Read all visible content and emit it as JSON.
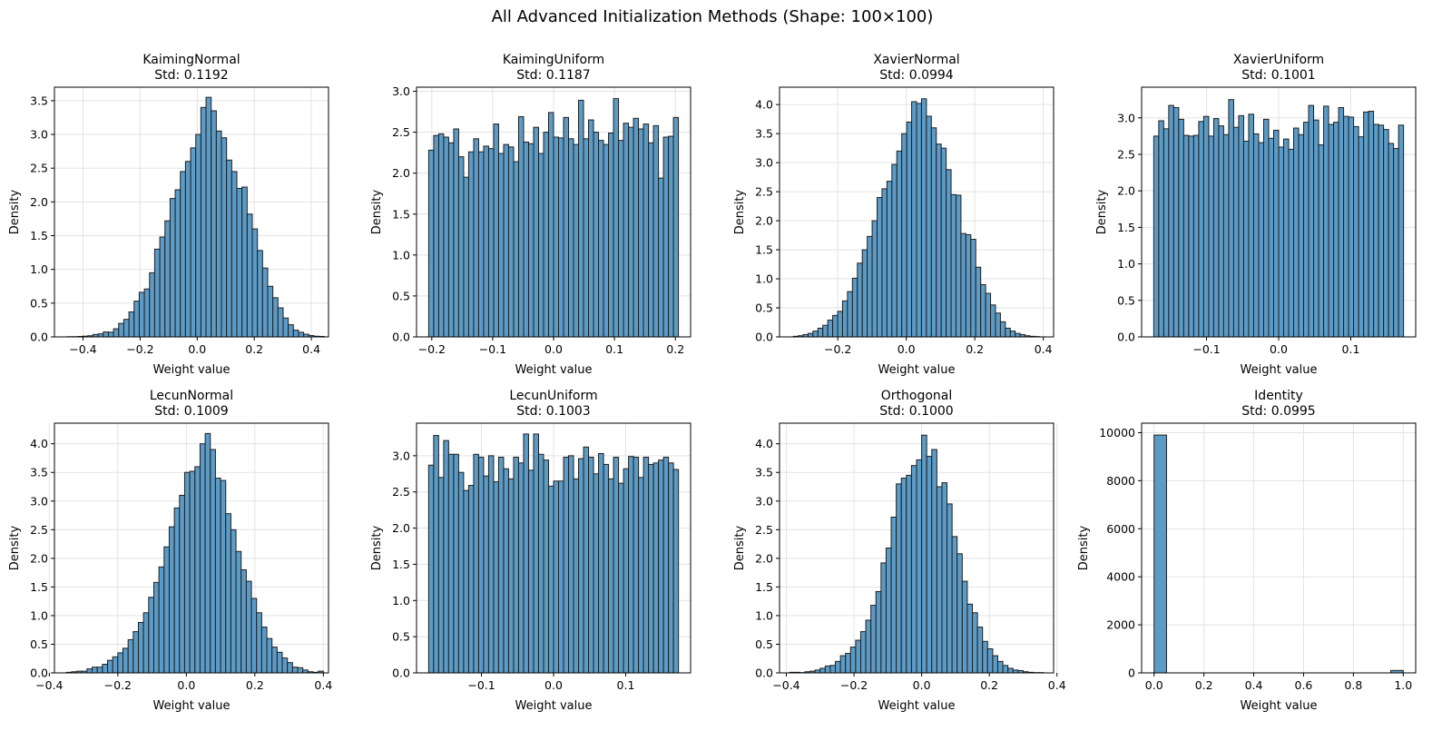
{
  "figure": {
    "title": "All Advanced Initialization Methods (Shape: 100×100)"
  },
  "colors": {
    "bar_fill": "#5b9bc6",
    "bar_edge": "#1f1f1f",
    "grid": "#e3e3e3",
    "axis": "#000000"
  },
  "chart_data": [
    {
      "type": "bar",
      "title": "KaimingNormal",
      "subtitle": "Std: 0.1192",
      "xlabel": "Weight value",
      "ylabel": "Density",
      "xlim": [
        -0.5,
        0.46
      ],
      "ylim": [
        0,
        3.7
      ],
      "xticks": [
        -0.4,
        -0.2,
        0.0,
        0.2,
        0.4
      ],
      "xtick_labels": [
        "−0.4",
        "−0.2",
        "0.0",
        "0.2",
        "0.4"
      ],
      "yticks": [
        0,
        0.5,
        1.0,
        1.5,
        2.0,
        2.5,
        3.0,
        3.5
      ],
      "ytick_labels": [
        "0.0",
        "0.5",
        "1.0",
        "1.5",
        "2.0",
        "2.5",
        "3.0",
        "3.5"
      ],
      "grid": true,
      "bins": {
        "start": -0.455,
        "end": 0.445,
        "count": 50
      },
      "values": [
        0.003,
        0.003,
        0.007,
        0.011,
        0.017,
        0.036,
        0.045,
        0.073,
        0.07,
        0.12,
        0.2,
        0.26,
        0.37,
        0.53,
        0.66,
        0.71,
        0.95,
        1.3,
        1.48,
        1.72,
        2.05,
        2.18,
        2.45,
        2.6,
        2.8,
        3.0,
        3.4,
        3.55,
        3.35,
        3.05,
        2.95,
        2.62,
        2.45,
        2.2,
        2.22,
        1.82,
        1.6,
        1.28,
        1.02,
        0.75,
        0.58,
        0.43,
        0.28,
        0.18,
        0.1,
        0.068,
        0.04,
        0.02,
        0.01,
        0.007
      ]
    },
    {
      "type": "bar",
      "title": "KaimingUniform",
      "subtitle": "Std: 0.1187",
      "xlabel": "Weight value",
      "ylabel": "Density",
      "xlim": [
        -0.225,
        0.225
      ],
      "ylim": [
        0,
        3.05
      ],
      "xticks": [
        -0.2,
        -0.1,
        0.0,
        0.1,
        0.2
      ],
      "xtick_labels": [
        "−0.2",
        "−0.1",
        "0.0",
        "0.1",
        "0.2"
      ],
      "yticks": [
        0,
        0.5,
        1.0,
        1.5,
        2.0,
        2.5,
        3.0
      ],
      "ytick_labels": [
        "0.0",
        "0.5",
        "1.0",
        "1.5",
        "2.0",
        "2.5",
        "3.0"
      ],
      "grid": true,
      "bins": {
        "start": -0.205,
        "end": 0.205,
        "count": 50
      },
      "values": [
        2.28,
        2.46,
        2.48,
        2.44,
        2.37,
        2.54,
        2.2,
        1.95,
        2.26,
        2.42,
        2.26,
        2.33,
        2.3,
        2.6,
        2.24,
        2.35,
        2.32,
        2.14,
        2.69,
        2.38,
        2.36,
        2.56,
        2.24,
        2.5,
        2.74,
        2.44,
        2.43,
        2.68,
        2.42,
        2.35,
        2.89,
        2.42,
        2.65,
        2.5,
        2.4,
        2.35,
        2.49,
        2.91,
        2.4,
        2.61,
        2.56,
        2.67,
        2.54,
        2.6,
        2.37,
        2.58,
        1.94,
        2.44,
        2.45,
        2.68
      ]
    },
    {
      "type": "bar",
      "title": "XavierNormal",
      "subtitle": "Std: 0.0994",
      "xlabel": "Weight value",
      "ylabel": "Density",
      "xlim": [
        -0.37,
        0.43
      ],
      "ylim": [
        0,
        4.3
      ],
      "xticks": [
        -0.2,
        0.0,
        0.2,
        0.4
      ],
      "xtick_labels": [
        "−0.2",
        "0.0",
        "0.2",
        "0.4"
      ],
      "yticks": [
        0,
        0.5,
        1.0,
        1.5,
        2.0,
        2.5,
        3.0,
        3.5,
        4.0
      ],
      "ytick_labels": [
        "0.0",
        "0.5",
        "1.0",
        "1.5",
        "2.0",
        "2.5",
        "3.0",
        "3.5",
        "4.0"
      ],
      "grid": true,
      "bins": {
        "start": -0.33,
        "end": 0.39,
        "count": 50
      },
      "values": [
        0.01,
        0.02,
        0.04,
        0.06,
        0.1,
        0.15,
        0.2,
        0.29,
        0.37,
        0.44,
        0.62,
        0.78,
        1.01,
        1.27,
        1.5,
        1.73,
        2.0,
        2.4,
        2.55,
        2.68,
        2.97,
        3.2,
        3.5,
        3.7,
        4.05,
        4.02,
        4.1,
        3.8,
        3.6,
        3.32,
        3.25,
        2.88,
        2.45,
        2.44,
        1.78,
        1.76,
        1.68,
        1.2,
        0.9,
        0.75,
        0.55,
        0.41,
        0.26,
        0.15,
        0.1,
        0.06,
        0.04,
        0.02,
        0.01,
        0.005
      ]
    },
    {
      "type": "bar",
      "title": "XavierUniform",
      "subtitle": "Std: 0.1001",
      "xlabel": "Weight value",
      "ylabel": "Density",
      "xlim": [
        -0.19,
        0.19
      ],
      "ylim": [
        0,
        3.42
      ],
      "xticks": [
        -0.1,
        0.0,
        0.1
      ],
      "xtick_labels": [
        "−0.1",
        "0.0",
        "0.1"
      ],
      "yticks": [
        0,
        0.5,
        1.0,
        1.5,
        2.0,
        2.5,
        3.0
      ],
      "ytick_labels": [
        "0.0",
        "0.5",
        "1.0",
        "1.5",
        "2.0",
        "2.5",
        "3.0"
      ],
      "grid": true,
      "bins": {
        "start": -0.1732,
        "end": 0.1732,
        "count": 50
      },
      "values": [
        2.75,
        2.96,
        2.85,
        3.17,
        3.14,
        2.98,
        2.76,
        2.75,
        2.76,
        2.95,
        3.02,
        2.75,
        2.99,
        2.89,
        2.77,
        3.25,
        2.87,
        3.03,
        2.68,
        3.05,
        2.78,
        2.66,
        2.98,
        2.72,
        2.83,
        2.6,
        2.71,
        2.57,
        2.86,
        2.77,
        2.94,
        3.17,
        2.97,
        2.63,
        3.16,
        2.91,
        2.94,
        3.14,
        3.02,
        3.01,
        2.88,
        2.74,
        3.08,
        3.09,
        2.91,
        2.9,
        2.84,
        2.65,
        2.58,
        2.9
      ]
    },
    {
      "type": "bar",
      "title": "LecunNormal",
      "subtitle": "Std: 0.1009",
      "xlabel": "Weight value",
      "ylabel": "Density",
      "xlim": [
        -0.385,
        0.415
      ],
      "ylim": [
        0,
        4.36
      ],
      "xticks": [
        -0.4,
        -0.2,
        0.0,
        0.2,
        0.4
      ],
      "xtick_labels": [
        "−0.4",
        "−0.2",
        "0.0",
        "0.2",
        "0.4"
      ],
      "yticks": [
        0,
        0.5,
        1.0,
        1.5,
        2.0,
        2.5,
        3.0,
        3.5,
        4.0
      ],
      "ytick_labels": [
        "0.0",
        "0.5",
        "1.0",
        "1.5",
        "2.0",
        "2.5",
        "3.0",
        "3.5",
        "4.0"
      ],
      "grid": true,
      "bins": {
        "start": -0.35,
        "end": 0.4,
        "count": 50
      },
      "values": [
        0.01,
        0.02,
        0.03,
        0.03,
        0.07,
        0.1,
        0.1,
        0.15,
        0.22,
        0.28,
        0.35,
        0.43,
        0.58,
        0.72,
        0.88,
        1.05,
        1.32,
        1.58,
        1.85,
        2.2,
        2.55,
        2.88,
        3.1,
        3.5,
        3.52,
        3.6,
        4.0,
        4.18,
        3.9,
        3.4,
        3.36,
        2.78,
        2.5,
        2.12,
        1.8,
        1.6,
        1.3,
        1.05,
        0.8,
        0.6,
        0.45,
        0.36,
        0.26,
        0.18,
        0.1,
        0.09,
        0.05,
        0.02,
        0.01,
        0.03
      ]
    },
    {
      "type": "bar",
      "title": "LecunUniform",
      "subtitle": "Std: 0.1003",
      "xlabel": "Weight value",
      "ylabel": "Density",
      "xlim": [
        -0.19,
        0.19
      ],
      "ylim": [
        0,
        3.45
      ],
      "xticks": [
        -0.1,
        0.0,
        0.1
      ],
      "xtick_labels": [
        "−0.1",
        "0.0",
        "0.1"
      ],
      "yticks": [
        0,
        0.5,
        1.0,
        1.5,
        2.0,
        2.5,
        3.0
      ],
      "ytick_labels": [
        "0.0",
        "0.5",
        "1.0",
        "1.5",
        "2.0",
        "2.5",
        "3.0"
      ],
      "grid": true,
      "bins": {
        "start": -0.1732,
        "end": 0.1732,
        "count": 50
      },
      "values": [
        2.87,
        3.28,
        2.7,
        3.21,
        3.02,
        3.02,
        2.77,
        2.52,
        2.59,
        3.02,
        2.98,
        2.72,
        3.0,
        2.64,
        2.98,
        2.82,
        2.68,
        2.98,
        2.9,
        3.3,
        2.8,
        3.3,
        3.02,
        2.94,
        2.58,
        2.65,
        2.65,
        2.98,
        3.0,
        2.68,
        2.96,
        3.12,
        2.98,
        2.75,
        3.03,
        2.88,
        2.68,
        2.98,
        2.62,
        2.82,
        2.99,
        2.98,
        2.7,
        2.98,
        2.88,
        2.9,
        2.94,
        2.98,
        2.9,
        2.81
      ]
    },
    {
      "type": "bar",
      "title": "Orthogonal",
      "subtitle": "Std: 0.1000",
      "xlabel": "Weight value",
      "ylabel": "Density",
      "xlim": [
        -0.42,
        0.39
      ],
      "ylim": [
        0,
        4.36
      ],
      "xticks": [
        -0.4,
        -0.2,
        0.0,
        0.2,
        0.4
      ],
      "xtick_labels": [
        "−0.4",
        "−0.2",
        "0.0",
        "0.2",
        "0.4"
      ],
      "yticks": [
        0,
        0.5,
        1.0,
        1.5,
        2.0,
        2.5,
        3.0,
        3.5,
        4.0
      ],
      "ytick_labels": [
        "0.0",
        "0.5",
        "1.0",
        "1.5",
        "2.0",
        "2.5",
        "3.0",
        "3.5",
        "4.0"
      ],
      "grid": true,
      "bins": {
        "start": -0.39,
        "end": 0.36,
        "count": 50
      },
      "values": [
        0.01,
        0.01,
        0.005,
        0.02,
        0.03,
        0.05,
        0.08,
        0.12,
        0.13,
        0.2,
        0.3,
        0.34,
        0.45,
        0.57,
        0.72,
        0.92,
        1.18,
        1.42,
        1.92,
        2.18,
        2.72,
        3.3,
        3.4,
        3.45,
        3.62,
        3.72,
        4.15,
        3.78,
        3.9,
        3.25,
        3.32,
        2.95,
        2.38,
        2.08,
        1.6,
        1.2,
        1.05,
        0.8,
        0.55,
        0.42,
        0.3,
        0.2,
        0.13,
        0.08,
        0.05,
        0.04,
        0.02,
        0.01,
        0.005,
        0.005
      ]
    },
    {
      "type": "bar",
      "title": "Identity",
      "subtitle": "Std: 0.0995",
      "xlabel": "Weight value",
      "ylabel": "Density",
      "xlim": [
        -0.05,
        1.05
      ],
      "ylim": [
        0,
        10395
      ],
      "xticks": [
        0.0,
        0.2,
        0.4,
        0.6,
        0.8,
        1.0
      ],
      "xtick_labels": [
        "0.0",
        "0.2",
        "0.4",
        "0.6",
        "0.8",
        "1.0"
      ],
      "yticks": [
        0,
        2000,
        4000,
        6000,
        8000,
        10000
      ],
      "ytick_labels": [
        "0",
        "2000",
        "4000",
        "6000",
        "8000",
        "10000"
      ],
      "grid": true,
      "bins": {
        "start": 0.0,
        "end": 1.0,
        "count": 20
      },
      "values": [
        9900,
        0,
        0,
        0,
        0,
        0,
        0,
        0,
        0,
        0,
        0,
        0,
        0,
        0,
        0,
        0,
        0,
        0,
        0,
        100
      ]
    }
  ]
}
